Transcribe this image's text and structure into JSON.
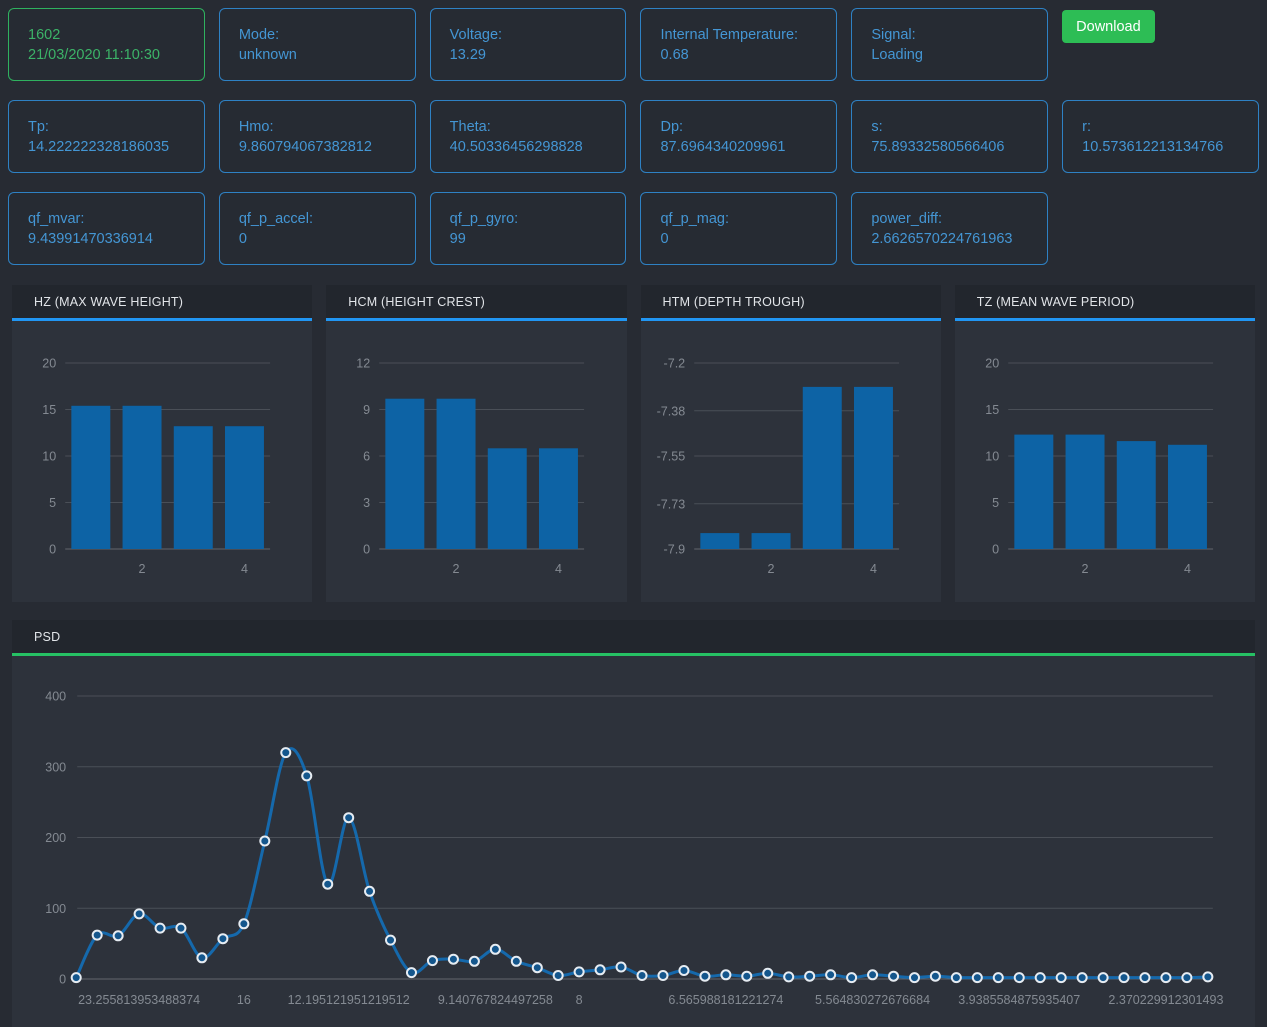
{
  "cards": {
    "sample": {
      "label": "1602",
      "value": "21/03/2020 11:10:30"
    },
    "mode": {
      "label": "Mode:",
      "value": "unknown"
    },
    "voltage": {
      "label": "Voltage:",
      "value": "13.29"
    },
    "internal_temperature": {
      "label": "Internal Temperature:",
      "value": "0.68"
    },
    "signal": {
      "label": "Signal:",
      "value": "Loading"
    },
    "tp": {
      "label": "Tp:",
      "value": "14.222222328186035"
    },
    "hmo": {
      "label": "Hmo:",
      "value": "9.860794067382812"
    },
    "theta": {
      "label": "Theta:",
      "value": "40.50336456298828"
    },
    "dp": {
      "label": "Dp:",
      "value": "87.6964340209961"
    },
    "s": {
      "label": "s:",
      "value": "75.89332580566406"
    },
    "r": {
      "label": "r:",
      "value": "10.573612213134766"
    },
    "qf_mvar": {
      "label": "qf_mvar:",
      "value": "9.43991470336914"
    },
    "qf_p_accel": {
      "label": "qf_p_accel:",
      "value": "0"
    },
    "qf_p_gyro": {
      "label": "qf_p_gyro:",
      "value": "99"
    },
    "qf_p_mag": {
      "label": "qf_p_mag:",
      "value": "0"
    },
    "power_diff": {
      "label": "power_diff:",
      "value": "2.6626570224761963"
    }
  },
  "toolbar": {
    "download_label": "Download"
  },
  "colors": {
    "accent_blue": "#2196f3",
    "accent_green": "#26c164",
    "bar_fill": "#0d63a5",
    "line_stroke": "#1569ac",
    "point_fill": "#14568c",
    "point_stroke": "#e6ecf2",
    "grid": "#4a4f57",
    "baseline": "#62676e",
    "tick_text": "#848a92",
    "card_border_blue": "#2e81c4",
    "card_border_green": "#2fb15f",
    "download_bg": "#2dbd55"
  },
  "chart_data": [
    {
      "type": "bar",
      "title": "HZ (MAX WAVE HEIGHT)",
      "categories": [
        1,
        2,
        3,
        4
      ],
      "values": [
        15.4,
        15.4,
        13.2,
        13.2
      ],
      "yticks": [
        20,
        15,
        10,
        5,
        0
      ],
      "ylim": [
        0,
        20
      ],
      "xticks": [
        {
          "index": 1,
          "label": "2"
        },
        {
          "index": 3,
          "label": "4"
        }
      ],
      "accent": "blue",
      "grid": true,
      "legend": "none"
    },
    {
      "type": "bar",
      "title": "HCM (HEIGHT CREST)",
      "categories": [
        1,
        2,
        3,
        4
      ],
      "values": [
        9.7,
        9.7,
        6.5,
        6.5
      ],
      "yticks": [
        12,
        9,
        6,
        3,
        0
      ],
      "ylim": [
        0,
        12
      ],
      "xticks": [
        {
          "index": 1,
          "label": "2"
        },
        {
          "index": 3,
          "label": "4"
        }
      ],
      "accent": "blue",
      "grid": true,
      "legend": "none"
    },
    {
      "type": "bar",
      "title": "HTM (DEPTH TROUGH)",
      "categories": [
        1,
        2,
        3,
        4
      ],
      "values": [
        -7.84,
        -7.84,
        -7.29,
        -7.29
      ],
      "yticks": [
        -7.2,
        -7.38,
        -7.55,
        -7.73,
        -7.9
      ],
      "ylim": [
        -7.9,
        -7.2
      ],
      "xticks": [
        {
          "index": 1,
          "label": "2"
        },
        {
          "index": 3,
          "label": "4"
        }
      ],
      "accent": "blue",
      "grid": true,
      "legend": "none"
    },
    {
      "type": "bar",
      "title": "TZ (MEAN WAVE PERIOD)",
      "categories": [
        1,
        2,
        3,
        4
      ],
      "values": [
        12.3,
        12.3,
        11.6,
        11.2
      ],
      "yticks": [
        20,
        15,
        10,
        5,
        0
      ],
      "ylim": [
        0,
        20
      ],
      "xticks": [
        {
          "index": 1,
          "label": "2"
        },
        {
          "index": 3,
          "label": "4"
        }
      ],
      "accent": "blue",
      "grid": true,
      "legend": "none"
    },
    {
      "type": "line",
      "title": "PSD",
      "values": [
        2,
        62,
        61,
        92,
        72,
        72,
        30,
        57,
        78,
        195,
        320,
        287,
        134,
        228,
        124,
        55,
        9,
        26,
        28,
        25,
        42,
        25,
        16,
        5,
        10,
        13,
        17,
        5,
        5,
        12,
        4,
        6,
        4,
        8,
        3,
        4,
        6,
        2,
        6,
        4,
        2,
        4,
        2,
        2,
        2,
        2,
        2,
        2,
        2,
        2,
        2,
        2,
        2,
        2,
        3
      ],
      "yticks": [
        400,
        300,
        200,
        100,
        0
      ],
      "ylim": [
        0,
        400
      ],
      "xticks": [
        {
          "index": 3,
          "label": "23.255813953488374"
        },
        {
          "index": 8,
          "label": "16"
        },
        {
          "index": 13,
          "label": "12.195121951219512"
        },
        {
          "index": 20,
          "label": "9.140767824497258"
        },
        {
          "index": 24,
          "label": "8"
        },
        {
          "index": 31,
          "label": "6.565988181221274"
        },
        {
          "index": 38,
          "label": "5.564830272676684"
        },
        {
          "index": 45,
          "label": "3.9385584875935407"
        },
        {
          "index": 52,
          "label": "2.370229912301493"
        }
      ],
      "accent": "green",
      "grid": true,
      "legend": "none"
    }
  ]
}
